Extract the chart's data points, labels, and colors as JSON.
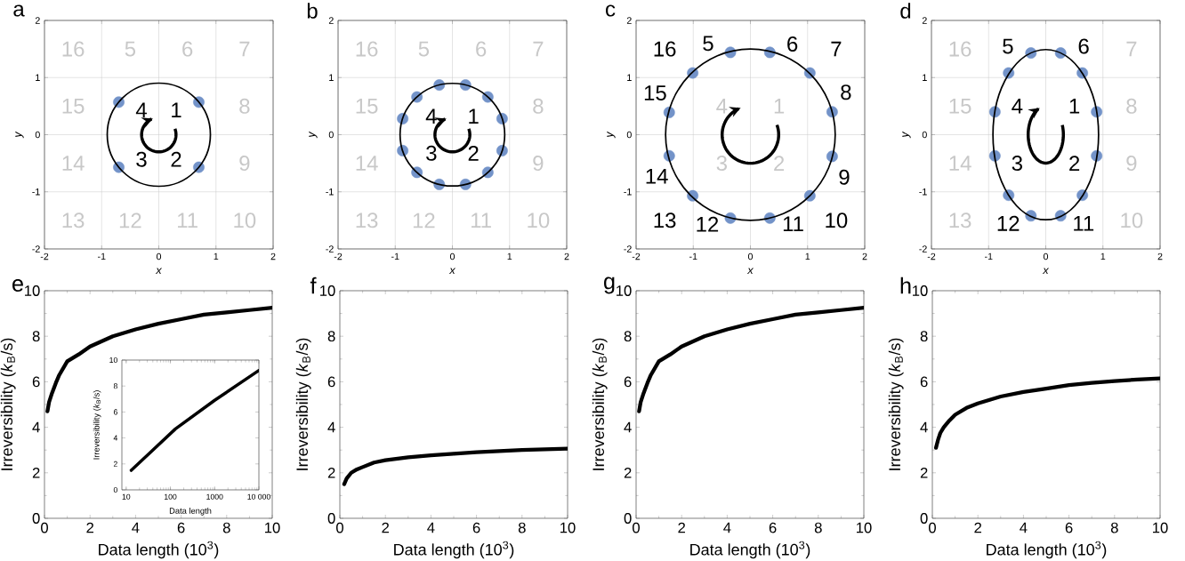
{
  "chart_data": [
    {
      "type": "scatter",
      "title": "a",
      "xlabel": "x",
      "ylabel": "y",
      "xlim": [
        -2,
        2
      ],
      "ylim": [
        -2,
        2
      ],
      "xticks": [
        -2,
        -1,
        0,
        1,
        2
      ],
      "yticks": [
        -2,
        -1,
        0,
        1,
        2
      ],
      "grid": true,
      "series": [
        {
          "type": "scatter",
          "color": "#7393c9",
          "x": [
            0.7,
            0.7,
            -0.7,
            -0.7
          ],
          "values": [
            0.57,
            -0.57,
            -0.57,
            0.57
          ]
        }
      ],
      "annotations": [
        "1",
        "2",
        "3",
        "4",
        "5",
        "6",
        "7",
        "8",
        "9",
        "10",
        "11",
        "12",
        "13",
        "14",
        "15",
        "16"
      ]
    },
    {
      "type": "scatter",
      "title": "b",
      "xlabel": "x",
      "ylabel": "y",
      "xlim": [
        -2,
        2
      ],
      "ylim": [
        -2,
        2
      ],
      "xticks": [
        -2,
        -1,
        0,
        1,
        2
      ],
      "yticks": [
        -2,
        -1,
        0,
        1,
        2
      ],
      "grid": true,
      "series": [
        {
          "type": "scatter",
          "color": "#7393c9",
          "x": [
            0.23,
            0.62,
            0.87,
            0.87,
            0.62,
            0.23,
            -0.23,
            -0.62,
            -0.87,
            -0.87,
            -0.62,
            -0.23
          ],
          "values": [
            0.87,
            0.66,
            0.28,
            -0.28,
            -0.66,
            -0.87,
            -0.87,
            -0.66,
            -0.28,
            0.28,
            0.66,
            0.87
          ]
        }
      ],
      "annotations": [
        "1",
        "2",
        "3",
        "4",
        "5",
        "6",
        "7",
        "8",
        "9",
        "10",
        "11",
        "12",
        "13",
        "14",
        "15",
        "16"
      ]
    },
    {
      "type": "scatter",
      "title": "c",
      "xlabel": "x",
      "ylabel": "y",
      "xlim": [
        -2,
        2
      ],
      "ylim": [
        -2,
        2
      ],
      "xticks": [
        -2,
        -1,
        0,
        1,
        2
      ],
      "yticks": [
        -2,
        -1,
        0,
        1,
        2
      ],
      "grid": true,
      "series": [
        {
          "type": "scatter",
          "color": "#7393c9",
          "x": [
            0.34,
            1.04,
            1.43,
            1.43,
            1.04,
            0.34,
            -0.35,
            -1.01,
            -1.42,
            -1.42,
            -1.01,
            -0.35
          ],
          "values": [
            1.44,
            1.08,
            0.4,
            -0.38,
            -1.07,
            -1.46,
            -1.46,
            -1.07,
            -0.37,
            0.39,
            1.08,
            1.44
          ]
        }
      ],
      "annotations": [
        "1",
        "2",
        "3",
        "4",
        "5",
        "6",
        "7",
        "8",
        "9",
        "10",
        "11",
        "12",
        "13",
        "14",
        "15",
        "16"
      ]
    },
    {
      "type": "scatter",
      "title": "d",
      "xlabel": "x",
      "ylabel": "y",
      "xlim": [
        -2,
        2
      ],
      "ylim": [
        -2,
        2
      ],
      "xticks": [
        -2,
        -1,
        0,
        1,
        2
      ],
      "yticks": [
        -2,
        -1,
        0,
        1,
        2
      ],
      "grid": true,
      "series": [
        {
          "type": "scatter",
          "color": "#7393c9",
          "x": [
            0.26,
            0.64,
            0.89,
            0.89,
            0.64,
            0.26,
            -0.26,
            -0.65,
            -0.89,
            -0.89,
            -0.65,
            -0.26
          ],
          "values": [
            1.43,
            1.08,
            0.4,
            -0.37,
            -1.06,
            -1.42,
            -1.42,
            -1.06,
            -0.37,
            0.4,
            1.08,
            1.43
          ]
        }
      ],
      "annotations": [
        "1",
        "2",
        "3",
        "4",
        "5",
        "6",
        "7",
        "8",
        "9",
        "10",
        "11",
        "12",
        "13",
        "14",
        "15",
        "16"
      ]
    },
    {
      "type": "line",
      "title": "e",
      "xlabel": "Data length (10$^{3}$)",
      "ylabel": "Irreversibility (*k*$_{B}$/s)",
      "xlim": [
        0,
        10
      ],
      "ylim": [
        0,
        10
      ],
      "xticks": [
        0,
        2,
        4,
        6,
        8,
        10
      ],
      "yticks": [
        0,
        2,
        4,
        6,
        8,
        10
      ],
      "series": [
        {
          "color": "#000000",
          "x": [
            0.13,
            0.2,
            0.33,
            0.5,
            0.65,
            1,
            1.5,
            2,
            3,
            4,
            5,
            6,
            7,
            8,
            9,
            10
          ],
          "values": [
            4.7,
            5.1,
            5.5,
            5.95,
            6.3,
            6.9,
            7.2,
            7.55,
            8.0,
            8.3,
            8.55,
            8.75,
            8.95,
            9.05,
            9.15,
            9.25
          ]
        }
      ]
    },
    {
      "type": "line",
      "xlabel": "Data length",
      "ylabel": "Irreversibility (*k*$_{B}$/s)",
      "log": "x",
      "xlim": [
        8,
        10000
      ],
      "ylim": [
        0,
        10
      ],
      "xticks": [
        10,
        100,
        1000,
        {
          "value": 10000,
          "label": "10 000"
        }
      ],
      "yticks": [
        0,
        2,
        4,
        6,
        8,
        10
      ],
      "series": [
        {
          "color": "#000000",
          "x": [
            13,
            130,
            1000,
            10000
          ],
          "values": [
            1.5,
            4.7,
            6.9,
            9.2
          ]
        }
      ]
    },
    {
      "type": "line",
      "title": "f",
      "xlabel": "Data length (10$^{3}$)",
      "ylabel": "Irreversibility (*k*$_{B}$/s)",
      "xlim": [
        0,
        10
      ],
      "ylim": [
        0,
        10
      ],
      "xticks": [
        0,
        2,
        4,
        6,
        8,
        10
      ],
      "yticks": [
        0,
        2,
        4,
        6,
        8,
        10
      ],
      "series": [
        {
          "color": "#000000",
          "x": [
            0.19,
            0.3,
            0.5,
            0.75,
            1,
            1.5,
            2,
            3,
            4,
            5,
            6,
            7,
            8,
            9,
            10
          ],
          "values": [
            1.5,
            1.75,
            2.0,
            2.15,
            2.25,
            2.45,
            2.55,
            2.68,
            2.77,
            2.84,
            2.9,
            2.95,
            3.0,
            3.03,
            3.06
          ]
        }
      ]
    },
    {
      "type": "line",
      "title": "g",
      "xlabel": "Data length (10$^{3}$)",
      "ylabel": "Irreversibility (*k*$_{B}$/s)",
      "xlim": [
        0,
        10
      ],
      "ylim": [
        0,
        10
      ],
      "xticks": [
        0,
        2,
        4,
        6,
        8,
        10
      ],
      "yticks": [
        0,
        2,
        4,
        6,
        8,
        10
      ],
      "series": [
        {
          "color": "#000000",
          "x": [
            0.13,
            0.2,
            0.33,
            0.5,
            0.65,
            1,
            1.5,
            2,
            3,
            4,
            5,
            6,
            7,
            8,
            9,
            10
          ],
          "values": [
            4.7,
            5.1,
            5.5,
            5.95,
            6.3,
            6.9,
            7.2,
            7.55,
            8.0,
            8.3,
            8.55,
            8.75,
            8.95,
            9.05,
            9.15,
            9.25
          ]
        }
      ]
    },
    {
      "type": "line",
      "title": "h",
      "xlabel": "Data length (10$^{3}$)",
      "ylabel": "Irreversibility (*k*$_{B}$/s)",
      "xlim": [
        0,
        10
      ],
      "ylim": [
        0,
        10
      ],
      "xticks": [
        0,
        2,
        4,
        6,
        8,
        10
      ],
      "yticks": [
        0,
        2,
        4,
        6,
        8,
        10
      ],
      "series": [
        {
          "color": "#000000",
          "x": [
            0.16,
            0.25,
            0.35,
            0.5,
            0.75,
            1,
            1.5,
            2,
            3,
            4,
            5,
            6,
            7,
            8,
            9,
            10
          ],
          "values": [
            3.1,
            3.45,
            3.75,
            4.0,
            4.3,
            4.55,
            4.85,
            5.05,
            5.35,
            5.55,
            5.7,
            5.85,
            5.95,
            6.03,
            6.1,
            6.15
          ]
        }
      ]
    }
  ]
}
